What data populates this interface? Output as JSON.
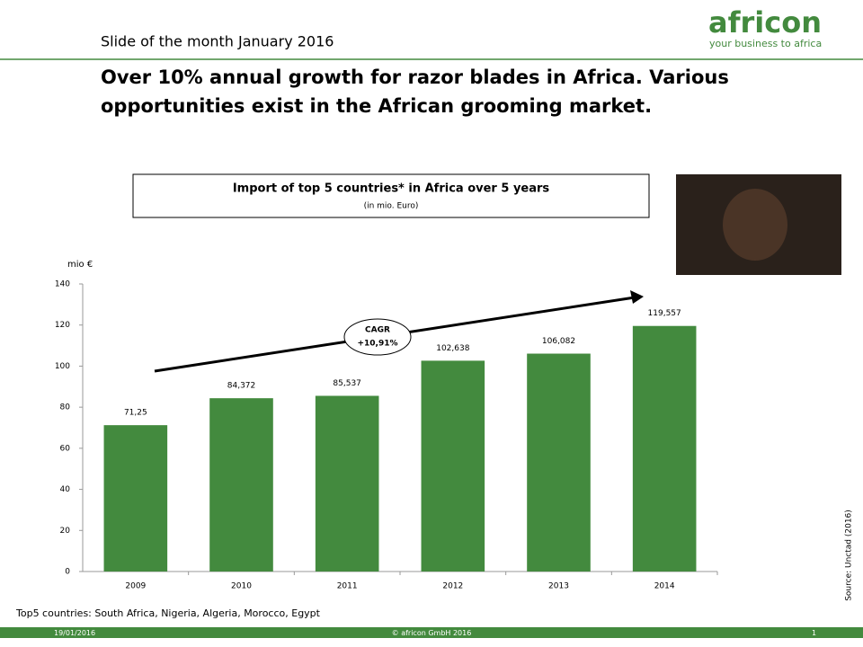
{
  "slide": {
    "header": "Slide of the month January  2016",
    "logo": "africon",
    "tagline": "your business to africa",
    "headline": "Over 10% annual growth for razor blades in Africa. Various opportunities exist in the African grooming market.",
    "footnote": "Top5 countries: South Africa, Nigeria, Algeria, Morocco, Egypt",
    "source": "Source: Unctad (2016)",
    "date": "19/01/2016",
    "copyright": "© africon GmbH 2016",
    "page": "1"
  },
  "chart_data": {
    "type": "bar",
    "title": "Import of top 5 countries* in Africa over 5 years",
    "subtitle": "(in mio. Euro)",
    "y_label": "mio €",
    "annotation": {
      "title": "CAGR",
      "text": "+10,91%"
    },
    "categories": [
      "2009",
      "2010",
      "2011",
      "2012",
      "2013",
      "2014"
    ],
    "values": [
      71.25,
      84.372,
      85.537,
      102.638,
      106.082,
      119.557
    ],
    "value_labels": [
      "71,25",
      "84,372",
      "85,537",
      "102,638",
      "106,082",
      "119,557"
    ],
    "color": "#438a3e",
    "ylim": [
      0,
      140
    ],
    "yticks": [
      0,
      20,
      40,
      60,
      80,
      100,
      120,
      140
    ],
    "grid": false
  }
}
